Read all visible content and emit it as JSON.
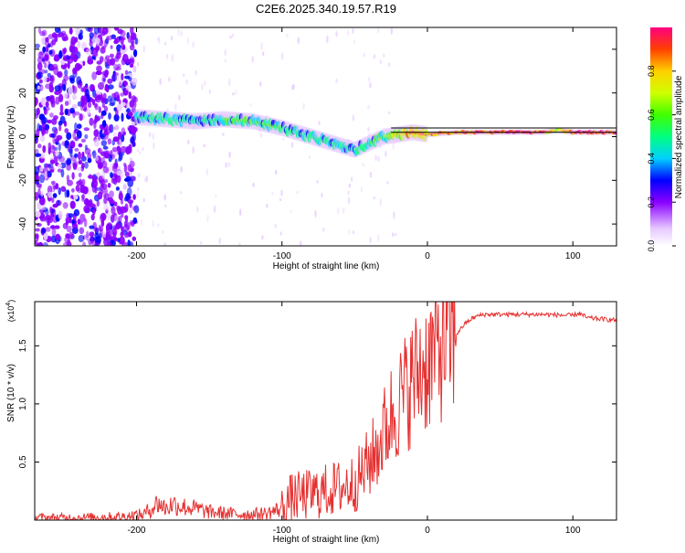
{
  "title": "C2E6.2025.340.19.57.R19",
  "colors": {
    "snr_line": "#e53030",
    "axis": "#000000",
    "ref_line": "#000000"
  },
  "chart_data": [
    {
      "type": "heatmap",
      "xlabel": "Height of straight line (km)",
      "ylabel": "Frequency (Hz)",
      "xlim": [
        -270,
        130
      ],
      "ylim": [
        -50,
        50
      ],
      "x_ticks": [
        -200,
        -100,
        0,
        100
      ],
      "x_tick_labels": [
        "-200",
        "-100",
        "0",
        "100"
      ],
      "y_ticks": [
        -40,
        -20,
        0,
        20,
        40
      ],
      "y_tick_labels": [
        "-40",
        "-20",
        "0",
        "20",
        "40"
      ],
      "reference_lines": [
        2,
        4
      ],
      "noise_region_x": [
        -270,
        -200
      ],
      "ridge": {
        "x": [
          -200,
          -180,
          -160,
          -140,
          -120,
          -100,
          -80,
          -60,
          -50,
          -40,
          -30,
          -20,
          -10,
          0,
          20,
          40,
          60,
          80,
          90,
          100,
          110,
          130
        ],
        "freq": [
          9,
          8,
          7,
          8,
          7,
          4,
          0,
          -4,
          -6,
          -3,
          0,
          1,
          2,
          1,
          2,
          2,
          2,
          2,
          3,
          2,
          2,
          2
        ],
        "amplitude": [
          0.45,
          0.5,
          0.5,
          0.5,
          0.55,
          0.5,
          0.45,
          0.5,
          0.45,
          0.5,
          0.6,
          0.75,
          0.85,
          0.85,
          0.9,
          0.95,
          0.98,
          0.98,
          0.7,
          0.98,
          0.95,
          0.95
        ]
      },
      "colorbar": {
        "label": "Normalized spectral amplitude",
        "range": [
          0,
          1
        ],
        "ticks": [
          0.0,
          0.2,
          0.4,
          0.6,
          0.8
        ],
        "tick_labels": [
          "0.0",
          "0.2",
          "0.4",
          "0.6",
          "0.8"
        ]
      }
    },
    {
      "type": "line",
      "xlabel": "Height of straight line (km)",
      "ylabel": "SNR (10 * v/v)",
      "y_multiplier": "(x10",
      "y_multiplier_exp": "4",
      "y_multiplier_close": ")",
      "xlim": [
        -270,
        130
      ],
      "ylim": [
        0,
        1.88
      ],
      "x_ticks": [
        -200,
        -100,
        0,
        100
      ],
      "x_tick_labels": [
        "-200",
        "-100",
        "0",
        "100"
      ],
      "y_ticks": [
        0.5,
        1.0,
        1.5
      ],
      "y_tick_labels": [
        "0.5",
        "1.0",
        "1.5"
      ],
      "series": [
        {
          "name": "SNR",
          "x": [
            -270,
            -240,
            -210,
            -195,
            -190,
            -185,
            -180,
            -175,
            -170,
            -160,
            -150,
            -140,
            -130,
            -120,
            -110,
            -100,
            -95,
            -90,
            -80,
            -70,
            -60,
            -55,
            -50,
            -45,
            -40,
            -35,
            -30,
            -25,
            -20,
            -15,
            -10,
            -5,
            0,
            5,
            10,
            15,
            20,
            25,
            30,
            35,
            40,
            60,
            80,
            100,
            104,
            110,
            120,
            130
          ],
          "y": [
            0.02,
            0.02,
            0.03,
            0.05,
            0.1,
            0.15,
            0.1,
            0.14,
            0.12,
            0.1,
            0.07,
            0.06,
            0.05,
            0.05,
            0.06,
            0.1,
            0.18,
            0.2,
            0.22,
            0.25,
            0.28,
            0.3,
            0.32,
            0.4,
            0.5,
            0.6,
            0.75,
            0.9,
            1.0,
            1.1,
            1.2,
            1.3,
            1.35,
            1.45,
            1.5,
            1.55,
            1.6,
            1.68,
            1.73,
            1.76,
            1.77,
            1.77,
            1.77,
            1.76,
            1.78,
            1.74,
            1.73,
            1.72
          ]
        }
      ]
    }
  ]
}
